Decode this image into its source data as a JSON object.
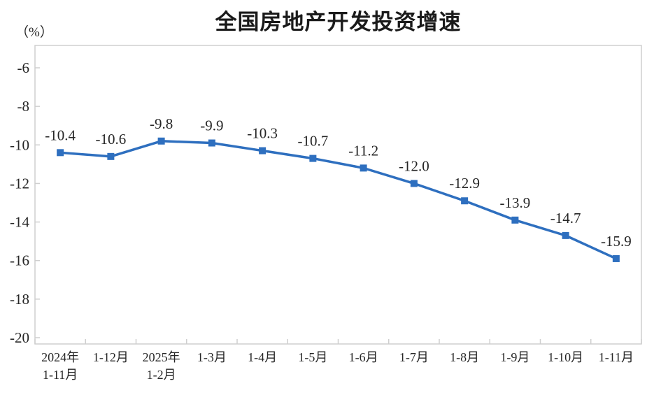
{
  "title": "全国房地产开发投资增速",
  "unit_label": "（%）",
  "chart_data": {
    "type": "line",
    "title": "全国房地产开发投资增速",
    "ylabel": "（%）",
    "xlabel": "",
    "categories": [
      "2024年\n1-11月",
      "1-12月",
      "2025年\n1-2月",
      "1-3月",
      "1-4月",
      "1-5月",
      "1-6月",
      "1-7月",
      "1-8月",
      "1-9月",
      "1-10月",
      "1-11月"
    ],
    "values": [
      -10.4,
      -10.6,
      -9.8,
      -9.9,
      -10.3,
      -10.7,
      -11.2,
      -12.0,
      -12.9,
      -13.9,
      -14.7,
      -15.9
    ],
    "data_labels": [
      "-10.4",
      "-10.6",
      "-9.8",
      "-9.9",
      "-10.3",
      "-10.7",
      "-11.2",
      "-12.0",
      "-12.9",
      "-13.9",
      "-14.7",
      "-15.9"
    ],
    "y_ticks": [
      -6,
      -8,
      -10,
      -12,
      -14,
      -16,
      -18,
      -20
    ],
    "ylim": [
      -20.4,
      -4.8
    ],
    "grid": false,
    "legend_position": "none",
    "marker": "square",
    "line_color": "#2e6fbf",
    "axis_color": "#cfcfcf",
    "text_color": "#262626"
  }
}
